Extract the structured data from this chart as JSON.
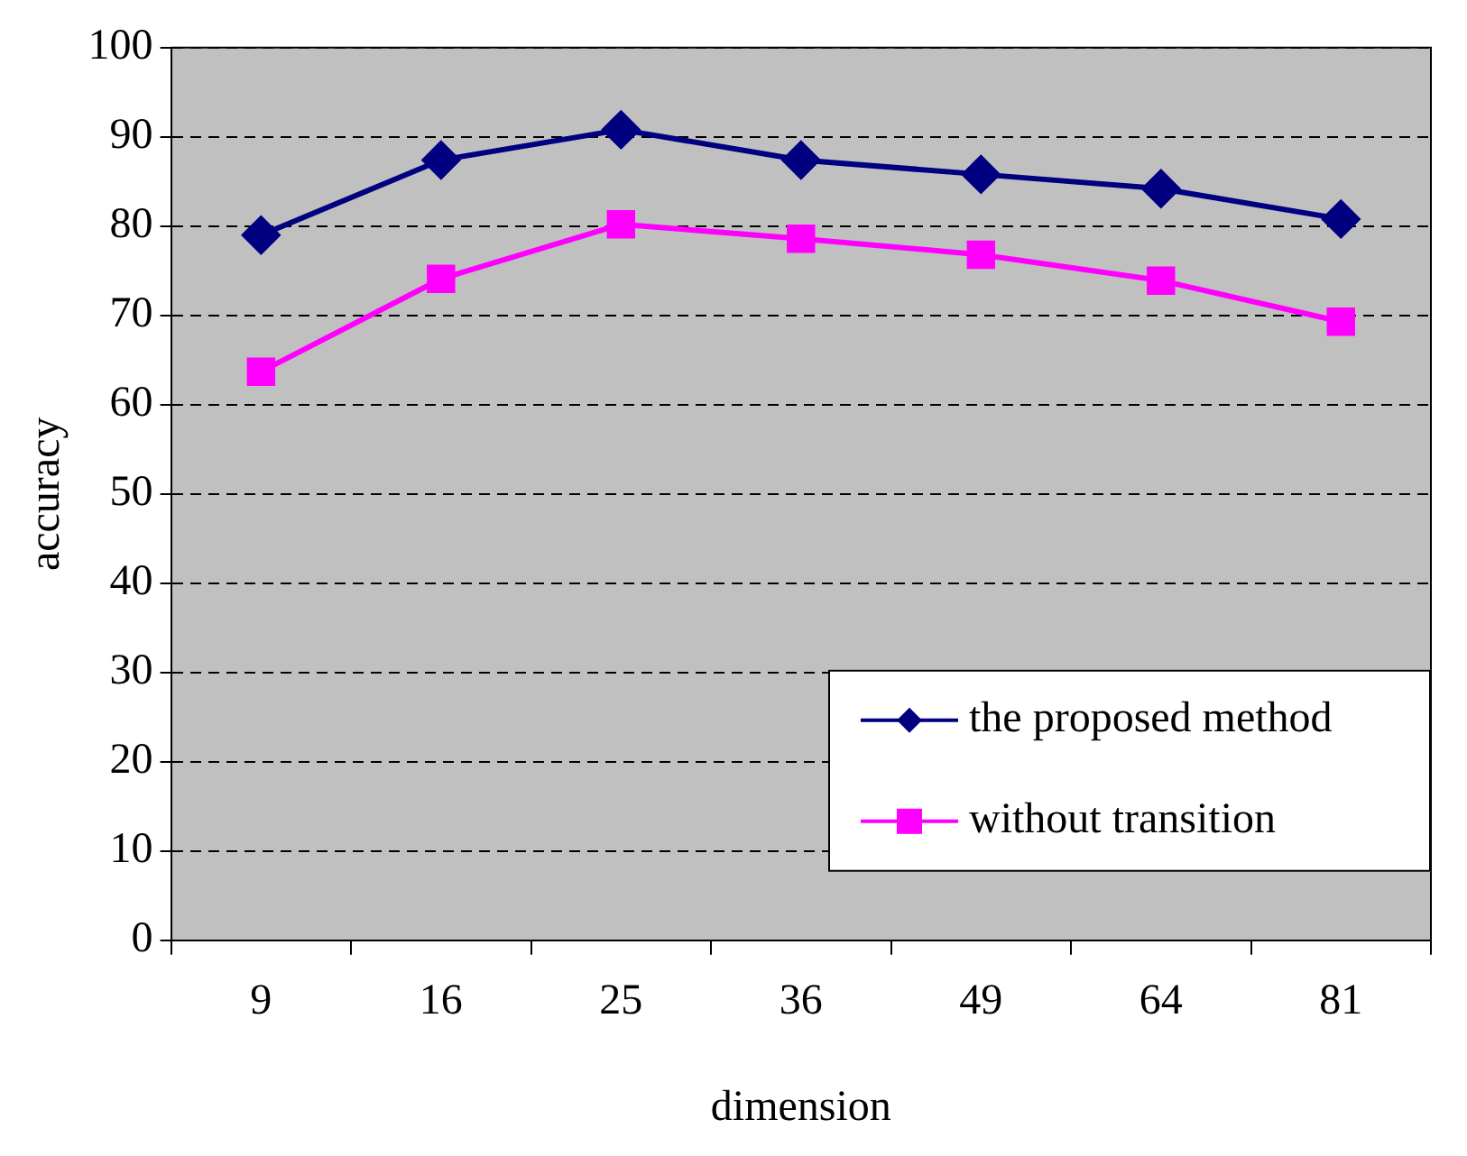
{
  "chart_data": {
    "type": "line",
    "xlabel": "dimension",
    "ylabel": "accuracy",
    "categories": [
      "9",
      "16",
      "25",
      "36",
      "49",
      "64",
      "81"
    ],
    "series": [
      {
        "name": "the proposed method",
        "color": "#000080",
        "marker": "diamond",
        "values": [
          79,
          87.4,
          90.8,
          87.4,
          85.8,
          84.2,
          80.8
        ]
      },
      {
        "name": "without transition",
        "color": "#ff00ff",
        "marker": "square",
        "values": [
          63.7,
          74.1,
          80.2,
          78.6,
          76.8,
          73.9,
          69.3
        ]
      }
    ],
    "ylim": [
      0,
      100
    ],
    "yticks": [
      0,
      10,
      20,
      30,
      40,
      50,
      60,
      70,
      80,
      90,
      100
    ],
    "grid": "y",
    "legend": "bottom right",
    "line_style": "solid"
  }
}
